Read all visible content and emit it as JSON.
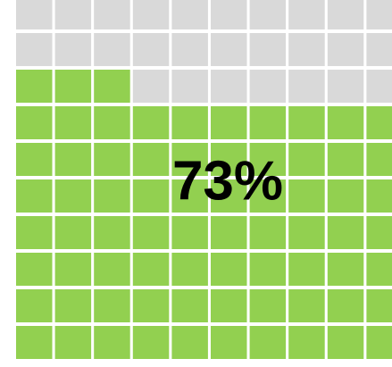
{
  "chart_data": {
    "type": "waffle",
    "value": 73,
    "value_labels": "73%",
    "rows": 10,
    "columns": 10,
    "color": "#92d050",
    "empty_color": "#d9d9d9"
  }
}
